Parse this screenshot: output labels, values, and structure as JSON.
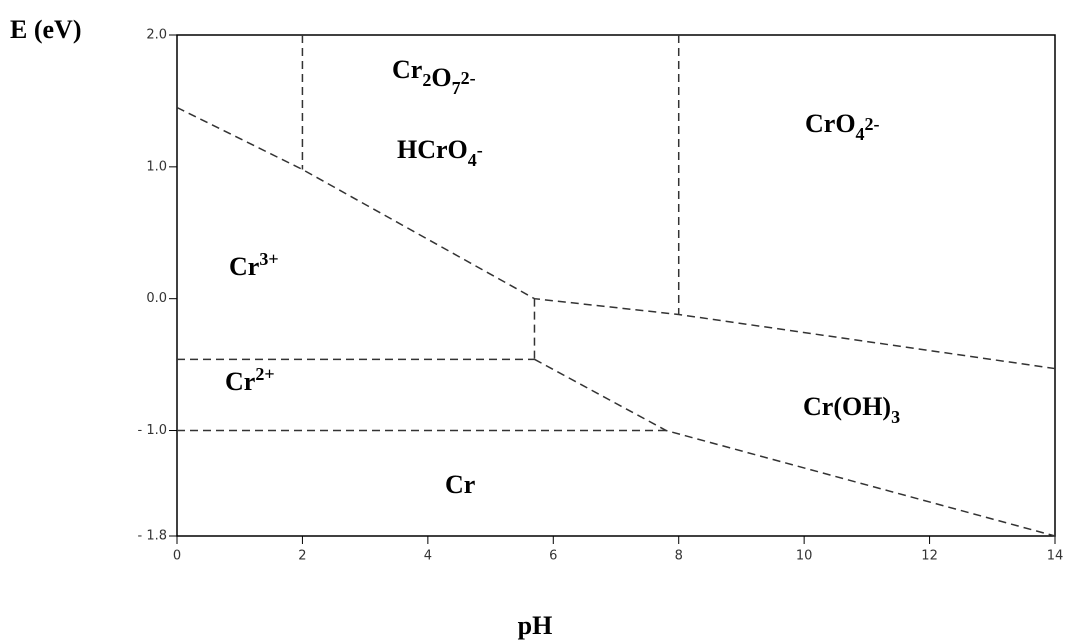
{
  "chart_data": {
    "type": "line",
    "ylabel": "E (eV)",
    "xlabel": "pH",
    "xlim": [
      0,
      14
    ],
    "xticks": [
      0,
      2,
      4,
      6,
      8,
      10,
      12,
      14
    ],
    "ylim": [
      -1.8,
      2.0
    ],
    "yticks": [
      {
        "value": 2.0,
        "label": "2.0"
      },
      {
        "value": 1.0,
        "label": "1.0"
      },
      {
        "value": 0.0,
        "label": "0.0"
      },
      {
        "value": -1.0,
        "label": "- 1.0"
      },
      {
        "value": -1.8,
        "label": "- 1.8"
      }
    ],
    "line_color": "#333333",
    "line_style": "dashed",
    "series": [
      {
        "x": [
          0,
          2,
          5.7,
          8,
          14
        ],
        "values": [
          1.45,
          0.98,
          0.0,
          -0.12,
          -0.53
        ]
      },
      {
        "x": [
          2,
          2
        ],
        "values": [
          2.0,
          0.98
        ]
      },
      {
        "x": [
          8,
          8
        ],
        "values": [
          2.0,
          -0.12
        ]
      },
      {
        "x": [
          5.7,
          5.7
        ],
        "values": [
          0.0,
          -0.46
        ]
      },
      {
        "x": [
          0,
          5.7
        ],
        "values": [
          -0.46,
          -0.46
        ]
      },
      {
        "x": [
          5.7,
          7.8,
          14
        ],
        "values": [
          -0.46,
          -1.0,
          -1.8
        ]
      },
      {
        "x": [
          0,
          7.8
        ],
        "values": [
          -1.0,
          -1.0
        ]
      }
    ],
    "annotations": [
      [
        "Cr",
        {
          "sub": "2"
        },
        "O",
        {
          "sub": "7"
        },
        {
          "sup": "2-"
        }
      ],
      [
        "HCrO",
        {
          "sub": "4"
        },
        {
          "sup": "-"
        }
      ],
      [
        "CrO",
        {
          "sub": "4"
        },
        {
          "sup": "2-"
        }
      ],
      [
        "Cr",
        {
          "sup": "3+"
        }
      ],
      [
        "Cr",
        {
          "sup": "2+"
        }
      ],
      [
        "Cr(OH)",
        {
          "sub": "3"
        }
      ],
      [
        "Cr"
      ]
    ]
  }
}
